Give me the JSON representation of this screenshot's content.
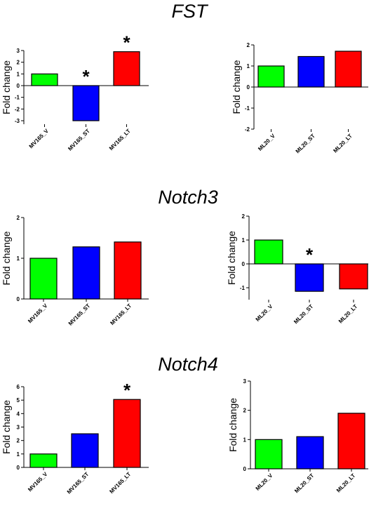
{
  "figure": {
    "titles": [
      "FST",
      "Notch3",
      "Notch4"
    ]
  },
  "chart_data": [
    {
      "type": "bar",
      "title": "FST",
      "ylabel": "Fold change",
      "categories": [
        "MV165_V",
        "MV165_ST",
        "MV165_LT"
      ],
      "values": [
        1.0,
        -3.0,
        2.9
      ],
      "colors": [
        "#00ff00",
        "#0000ff",
        "#ff0000"
      ],
      "ylim": [
        -3.3,
        3.0
      ],
      "yticks": [
        3,
        2,
        1,
        0,
        -1,
        -2,
        -3
      ],
      "ytick_labels": [
        "3",
        "2",
        "1",
        "0",
        "-1",
        "-2",
        "-3"
      ],
      "significance": [
        false,
        true,
        true
      ],
      "star": "*"
    },
    {
      "type": "bar",
      "title": "FST",
      "ylabel": "Fold change",
      "categories": [
        "ML20_V",
        "ML20_ST",
        "ML20_LT"
      ],
      "values": [
        1.0,
        1.45,
        1.7
      ],
      "colors": [
        "#00ff00",
        "#0000ff",
        "#ff0000"
      ],
      "ylim": [
        -2,
        2
      ],
      "yticks": [
        2,
        1,
        0,
        -1,
        -2
      ],
      "ytick_labels": [
        "2",
        "1",
        "0",
        "-1",
        "-2"
      ],
      "significance": [
        false,
        false,
        false
      ],
      "star": "*"
    },
    {
      "type": "bar",
      "title": "Notch3",
      "ylabel": "Fold change",
      "categories": [
        "MV165_V",
        "MV165_ST",
        "MV165_LT"
      ],
      "values": [
        1.0,
        1.28,
        1.4
      ],
      "colors": [
        "#00ff00",
        "#0000ff",
        "#ff0000"
      ],
      "ylim": [
        0,
        2
      ],
      "yticks": [
        2,
        1,
        0
      ],
      "ytick_labels": [
        "2",
        "1",
        "0"
      ],
      "significance": [
        false,
        false,
        false
      ],
      "star": "*"
    },
    {
      "type": "bar",
      "title": "Notch3",
      "ylabel": "Fold change",
      "categories": [
        "ML20_V",
        "ML20_ST",
        "ML20_LT"
      ],
      "values": [
        1.0,
        -1.15,
        -1.05
      ],
      "colors": [
        "#00ff00",
        "#0000ff",
        "#ff0000"
      ],
      "ylim": [
        -1.5,
        2
      ],
      "yticks": [
        2,
        1,
        0,
        -1
      ],
      "ytick_labels": [
        "2",
        "1",
        "0",
        "-1"
      ],
      "significance": [
        false,
        true,
        false
      ],
      "star": "*"
    },
    {
      "type": "bar",
      "title": "Notch4",
      "ylabel": "Fold change",
      "categories": [
        "MV165_V",
        "MV165_ST",
        "MV165_LT"
      ],
      "values": [
        1.0,
        2.5,
        5.05
      ],
      "colors": [
        "#00ff00",
        "#0000ff",
        "#ff0000"
      ],
      "ylim": [
        0,
        6
      ],
      "yticks": [
        6,
        5,
        4,
        3,
        2,
        1,
        0
      ],
      "ytick_labels": [
        "6",
        "5",
        "4",
        "3",
        "2",
        "1",
        "0"
      ],
      "significance": [
        false,
        false,
        true
      ],
      "star": "*"
    },
    {
      "type": "bar",
      "title": "Notch4",
      "ylabel": "Fold change",
      "categories": [
        "ML20_V",
        "ML20_ST",
        "ML20_LT"
      ],
      "values": [
        1.0,
        1.1,
        1.9
      ],
      "colors": [
        "#00ff00",
        "#0000ff",
        "#ff0000"
      ],
      "ylim": [
        0,
        3
      ],
      "yticks": [
        3,
        2,
        1,
        0
      ],
      "ytick_labels": [
        "3",
        "2",
        "1",
        "0"
      ],
      "significance": [
        false,
        false,
        false
      ],
      "star": "*"
    }
  ]
}
